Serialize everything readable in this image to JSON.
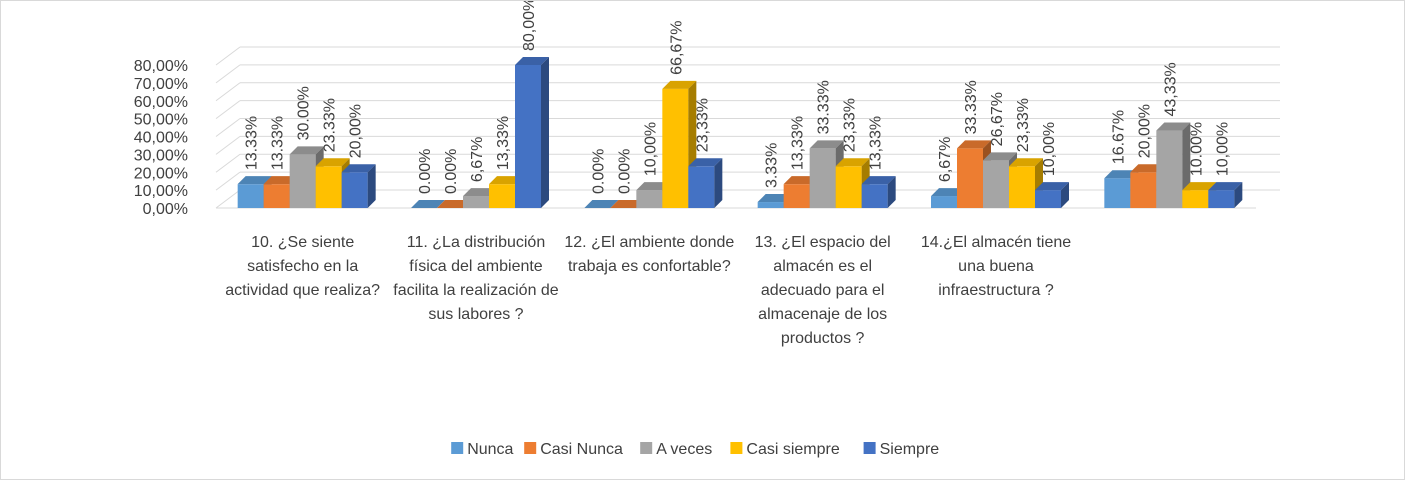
{
  "chart_data": {
    "type": "bar3d",
    "categories": [
      "10. ¿Se siente satisfecho en la actividad que realiza?",
      "11. ¿La distribución física del ambiente facilita la realización de sus labores ?",
      "12. ¿El ambiente donde trabaja es confortable?",
      "13. ¿El espacio del almacén es el adecuado para el almacenaje de los productos ?",
      "14.¿El almacén tiene una buena infraestructura ?",
      null
    ],
    "series": [
      {
        "name": "Nunca",
        "color": "#5b9bd5",
        "values": [
          13.33,
          0,
          0,
          3.33,
          6.67,
          16.67
        ],
        "value_labels": [
          "13.33%",
          "0.00%",
          "0.00%",
          "3.33%",
          "6,67%",
          "16.67%"
        ]
      },
      {
        "name": "Casi Nunca",
        "color": "#ed7d31",
        "values": [
          13.33,
          0,
          0,
          13.33,
          33.33,
          20
        ],
        "value_labels": [
          "13.33%",
          "0.00%",
          "0.00%",
          "13,33%",
          "33.33%",
          "20,00%"
        ]
      },
      {
        "name": "A veces",
        "color": "#a5a5a5",
        "values": [
          30,
          6.67,
          10,
          33.33,
          26.67,
          43.33
        ],
        "value_labels": [
          "30.00%",
          "6,67%",
          "10,00%",
          "33.33%",
          "26,67%",
          "43,33%"
        ]
      },
      {
        "name": "Casi siempre",
        "color": "#ffc000",
        "values": [
          23.33,
          13.33,
          66.67,
          23.33,
          23.33,
          10
        ],
        "value_labels": [
          "23.33%",
          "13,33%",
          "66,67%",
          "23,33%",
          "23,33%",
          "10.00%"
        ]
      },
      {
        "name": "Siempre",
        "color": "#4472c4",
        "values": [
          20,
          80,
          23.33,
          13.33,
          10,
          10
        ],
        "value_labels": [
          "20,00%",
          "80,00%",
          "23,33%",
          "13,33%",
          "10,00%",
          "10,00%"
        ]
      }
    ],
    "ylim": [
      0,
      80
    ],
    "yticks": [
      {
        "value": 0,
        "label": "0,00%"
      },
      {
        "value": 10,
        "label": "10,00%"
      },
      {
        "value": 20,
        "label": "20,00%"
      },
      {
        "value": 30,
        "label": "30,00%"
      },
      {
        "value": 40,
        "label": "40,00%"
      },
      {
        "value": 50,
        "label": "50,00%"
      },
      {
        "value": 60,
        "label": "60,00%"
      },
      {
        "value": 70,
        "label": "70,00%"
      },
      {
        "value": 80,
        "label": "80,00%"
      }
    ],
    "grid": true,
    "legend": "bottom"
  }
}
